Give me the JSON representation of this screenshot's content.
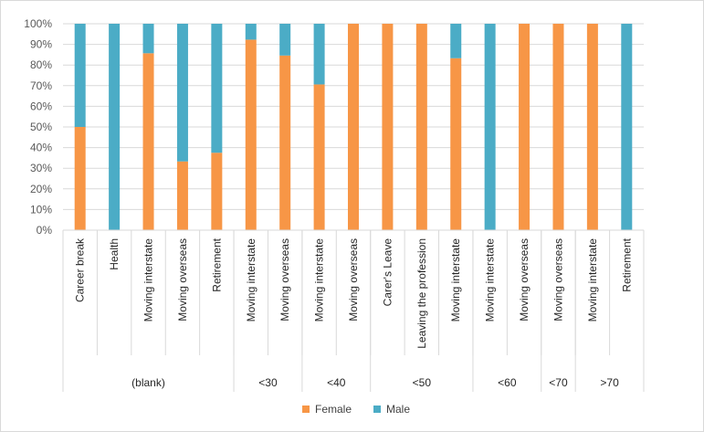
{
  "chart_data": {
    "type": "bar",
    "stacked": "percent",
    "title": "",
    "xlabel": "",
    "ylabel": "",
    "ylim": [
      0,
      100
    ],
    "yticks": [
      "0%",
      "10%",
      "20%",
      "30%",
      "40%",
      "50%",
      "60%",
      "70%",
      "80%",
      "90%",
      "100%"
    ],
    "grid": true,
    "legend_position": "bottom",
    "groups": [
      {
        "label": "(blank)",
        "categories": [
          "Career break",
          "Health",
          "Moving interstate",
          "Moving overseas",
          "Retirement"
        ]
      },
      {
        "label": "<30",
        "categories": [
          "Moving interstate",
          "Moving overseas"
        ]
      },
      {
        "label": "<40",
        "categories": [
          "Moving interstate",
          "Moving overseas"
        ]
      },
      {
        "label": "<50",
        "categories": [
          "Carer's Leave",
          "Leaving the profession",
          "Moving interstate"
        ]
      },
      {
        "label": "<60",
        "categories": [
          "Moving interstate",
          "Moving overseas"
        ]
      },
      {
        "label": "<70",
        "categories": [
          "Moving overseas"
        ]
      },
      {
        "label": ">70",
        "categories": [
          "Moving interstate",
          "Retirement"
        ]
      }
    ],
    "series": [
      {
        "name": "Female",
        "color": "#f79646",
        "values": [
          50,
          0,
          85.7,
          33.3,
          37.5,
          92.3,
          84.6,
          70.6,
          100,
          100,
          100,
          83.3,
          0,
          100,
          100,
          100,
          0
        ]
      },
      {
        "name": "Male",
        "color": "#4bacc6",
        "values": [
          50,
          100,
          14.3,
          66.7,
          62.5,
          7.7,
          15.4,
          29.4,
          0,
          0,
          0,
          16.7,
          100,
          0,
          0,
          0,
          100
        ]
      }
    ]
  }
}
